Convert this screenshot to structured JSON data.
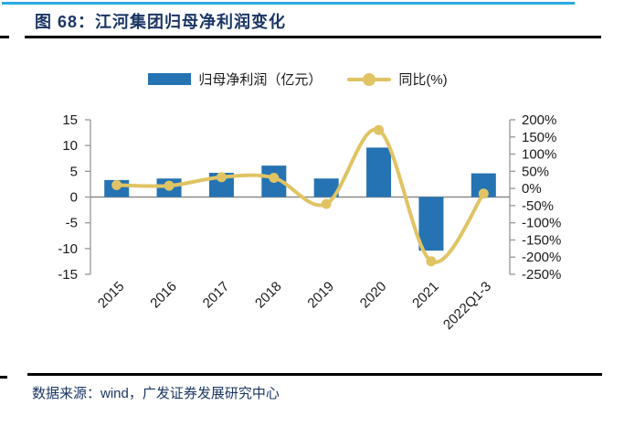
{
  "header": {
    "title": "图 68：江河集团归母净利润变化"
  },
  "legend": {
    "bar_label": "归母净利润（亿元）",
    "line_label": "同比(%)"
  },
  "footer": {
    "source": "数据来源：wind，广发证券发展研究中心"
  },
  "colors": {
    "top_accent": "#2BAAE2",
    "title_navy": "#1B3664",
    "bar_blue": "#2573B3",
    "line_gold": "#E0C464",
    "axis_gray": "#969696",
    "zero_line_gray": "#8C8C8C",
    "label_black": "#1A1A1A",
    "rule_black": "#000000"
  },
  "chart_data": {
    "type": "bar+line",
    "title": "江河集团归母净利润变化",
    "categories": [
      "2015",
      "2016",
      "2017",
      "2018",
      "2019",
      "2020",
      "2021",
      "2022Q1-3"
    ],
    "series": [
      {
        "name": "归母净利润（亿元）",
        "type": "bar",
        "axis": "left",
        "color": "#2573B3",
        "values": [
          3.3,
          3.6,
          4.7,
          6.1,
          3.6,
          9.6,
          -10.4,
          4.6
        ]
      },
      {
        "name": "同比(%)",
        "type": "line",
        "axis": "right",
        "color": "#E0C464",
        "smooth": true,
        "values": [
          10,
          8,
          33,
          31,
          -45,
          170,
          -212,
          -15
        ]
      }
    ],
    "left_axis": {
      "min": -15,
      "max": 15,
      "step": 5,
      "ticks": [
        15,
        10,
        5,
        0,
        -5,
        -10,
        -15
      ]
    },
    "right_axis": {
      "min": -250,
      "max": 200,
      "step": 50,
      "tick_labels": [
        "200%",
        "150%",
        "100%",
        "50%",
        "0%",
        "-50%",
        "-100%",
        "-150%",
        "-200%",
        "-250%"
      ]
    },
    "grid": false,
    "legend_position": "top",
    "x_label_rotation": -45
  }
}
